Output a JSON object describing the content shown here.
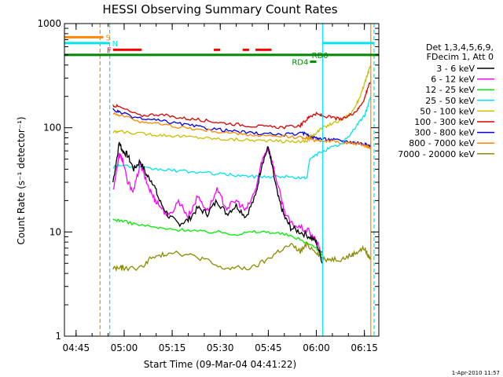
{
  "chart_data": {
    "type": "line",
    "title": "HESSI Observing Summary Count Rates",
    "xlabel": "Start Time (09-Mar-04 04:41:22)",
    "ylabel": "Count Rate (s⁻¹ detector⁻¹)",
    "y_scale": "log",
    "ylim": [
      1,
      1000
    ],
    "xlim": [
      "04:41:22",
      "06:19:30"
    ],
    "x_ticks": [
      "04:45",
      "05:00",
      "05:15",
      "05:30",
      "05:45",
      "06:00",
      "06:15"
    ],
    "y_ticks": [
      "1",
      "10",
      "100",
      "1000"
    ],
    "grid": false,
    "legend_position": "right",
    "legend_header": [
      "Det 1,3,4,5,6,9,",
      "FDecim 1, Att 0"
    ],
    "timestamp": "1-Apr-2010 11:57",
    "series": [
      {
        "name": "3 - 6 keV",
        "color": "#000000",
        "x": [
          "04:56:30",
          "04:58:30",
          "04:59:30",
          "05:01",
          "05:03",
          "05:05",
          "05:07",
          "05:09",
          "05:11",
          "05:14",
          "05:17",
          "05:20",
          "05:23",
          "05:26",
          "05:29",
          "05:32",
          "05:35",
          "05:38",
          "05:41",
          "05:43",
          "05:45",
          "05:46",
          "05:48",
          "05:50",
          "05:52",
          "05:55",
          "05:58",
          "06:00",
          "06:02"
        ],
        "y": [
          30,
          72,
          60,
          55,
          40,
          48,
          35,
          30,
          20,
          14,
          12,
          13,
          17,
          15,
          20,
          15,
          18,
          14,
          22,
          45,
          65,
          45,
          22,
          14,
          11,
          10,
          9,
          8,
          5
        ]
      },
      {
        "name": "6 - 12 keV",
        "color": "#ff00ff",
        "x": [
          "04:56:30",
          "04:58:30",
          "04:59:30",
          "05:01",
          "05:03",
          "05:05",
          "05:07",
          "05:09",
          "05:11",
          "05:14",
          "05:17",
          "05:20",
          "05:23",
          "05:26",
          "05:29",
          "05:32",
          "05:35",
          "05:38",
          "05:41",
          "05:43",
          "05:45",
          "05:46",
          "05:48",
          "05:50",
          "05:52",
          "05:55",
          "05:58",
          "06:00",
          "06:02"
        ],
        "y": [
          25,
          55,
          50,
          30,
          25,
          45,
          30,
          22,
          18,
          14,
          20,
          14,
          22,
          16,
          25,
          17,
          20,
          16,
          25,
          48,
          65,
          50,
          28,
          16,
          12,
          11,
          10,
          8,
          6
        ]
      },
      {
        "name": "12 - 25 keV",
        "color": "#00ee00",
        "x": [
          "04:56:30",
          "04:58:30",
          "05:03",
          "05:10",
          "05:15",
          "05:20",
          "05:25",
          "05:30",
          "05:35",
          "05:40",
          "05:45",
          "05:50",
          "05:55",
          "06:00",
          "06:02"
        ],
        "y": [
          13,
          13,
          12,
          11,
          10.5,
          10.5,
          10,
          10,
          9.5,
          10,
          10,
          9.5,
          8.5,
          7,
          6
        ]
      },
      {
        "name": "25 - 50 keV",
        "color": "#00e5ee",
        "x": [
          "04:56:30",
          "04:58:30",
          "05:05",
          "05:10",
          "05:15",
          "05:20",
          "05:25",
          "05:30",
          "05:35",
          "05:40",
          "05:45",
          "05:50",
          "05:55",
          "05:57",
          "05:58",
          "06:00",
          "06:02",
          "06:05",
          "06:08",
          "06:11",
          "06:13",
          "06:15",
          "06:16",
          "06:17"
        ],
        "y": [
          42,
          44,
          41,
          40,
          39,
          38,
          37,
          36,
          35,
          34,
          34,
          34,
          33,
          33,
          50,
          55,
          60,
          65,
          70,
          90,
          110,
          130,
          160,
          200
        ]
      },
      {
        "name": "50 - 100 keV",
        "color": "#cdbe00",
        "x": [
          "04:56:30",
          "04:58:30",
          "05:05",
          "05:10",
          "05:15",
          "05:20",
          "05:25",
          "05:30",
          "05:35",
          "05:40",
          "05:45",
          "05:50",
          "05:55",
          "05:57",
          "05:58",
          "06:00",
          "06:02",
          "06:05",
          "06:08",
          "06:11",
          "06:13",
          "06:15",
          "06:16",
          "06:17"
        ],
        "y": [
          90,
          92,
          88,
          86,
          84,
          82,
          80,
          78,
          77,
          76,
          75,
          74,
          74,
          74,
          82,
          90,
          100,
          110,
          120,
          140,
          180,
          260,
          330,
          400
        ]
      },
      {
        "name": "100 - 300 keV",
        "color": "#dd0000",
        "x": [
          "04:56:30",
          "04:58:30",
          "05:05",
          "05:10",
          "05:15",
          "05:20",
          "05:25",
          "05:30",
          "05:35",
          "05:40",
          "05:45",
          "05:50",
          "05:55",
          "05:57",
          "05:58",
          "06:00",
          "06:02",
          "06:05",
          "06:08",
          "06:11",
          "06:13",
          "06:15",
          "06:16",
          "06:17"
        ],
        "y": [
          165,
          158,
          130,
          135,
          128,
          122,
          118,
          112,
          108,
          104,
          102,
          101,
          105,
          120,
          130,
          135,
          130,
          125,
          120,
          135,
          150,
          190,
          240,
          280
        ]
      },
      {
        "name": "300 - 800 keV",
        "color": "#0000ee",
        "x": [
          "04:56:30",
          "04:58:30",
          "05:05",
          "05:10",
          "05:15",
          "05:20",
          "05:25",
          "05:30",
          "05:35",
          "05:40",
          "05:45",
          "05:50",
          "05:55",
          "05:57",
          "05:58",
          "06:00",
          "06:02",
          "06:05",
          "06:08",
          "06:11",
          "06:13",
          "06:15",
          "06:16",
          "06:17"
        ],
        "y": [
          150,
          140,
          122,
          118,
          112,
          106,
          100,
          96,
          92,
          89,
          87,
          86,
          88,
          88,
          82,
          80,
          78,
          77,
          75,
          73,
          72,
          70,
          68,
          66
        ]
      },
      {
        "name": "800 - 7000 keV",
        "color": "#ff8800",
        "x": [
          "04:56:30",
          "04:58:30",
          "05:05",
          "05:10",
          "05:15",
          "05:20",
          "05:25",
          "05:30",
          "05:35",
          "05:40",
          "05:45",
          "05:50",
          "05:55",
          "05:57",
          "05:58",
          "06:00",
          "06:02",
          "06:05",
          "06:08",
          "06:11",
          "06:13",
          "06:15",
          "06:16",
          "06:17"
        ],
        "y": [
          140,
          132,
          115,
          110,
          104,
          99,
          95,
          91,
          88,
          85,
          83,
          82,
          81,
          80,
          78,
          76,
          75,
          74,
          72,
          71,
          70,
          68,
          66,
          64
        ]
      },
      {
        "name": "7000 - 20000 keV",
        "color": "#8b8b00",
        "x": [
          "04:56:30",
          "04:58:30",
          "05:00",
          "05:05",
          "05:08",
          "05:12",
          "05:15",
          "05:20",
          "05:25",
          "05:30",
          "05:35",
          "05:40",
          "05:45",
          "05:48",
          "05:52",
          "05:55",
          "05:57",
          "06:00",
          "06:02",
          "06:05",
          "06:08",
          "06:11",
          "06:13",
          "06:15",
          "06:16",
          "06:17"
        ],
        "y": [
          4.5,
          4.5,
          4.5,
          4.5,
          5.5,
          6,
          6.5,
          6,
          5.5,
          4.5,
          4.5,
          4.5,
          5.5,
          6.5,
          7.5,
          6.5,
          7.5,
          6.5,
          5.5,
          5.5,
          5.5,
          6,
          6.5,
          7,
          6,
          5.5
        ]
      }
    ],
    "annotations": {
      "flags": [
        {
          "label": "S",
          "color": "#ff8800",
          "y": 740,
          "x_end": "04:53:30"
        },
        {
          "label": "N",
          "color": "#00e5ee",
          "y": 650,
          "x_end": "04:55:30"
        },
        {
          "label": "F",
          "color": "#ff0000",
          "y": 560,
          "segments": [
            [
              "04:56:30",
              "05:05:30"
            ],
            [
              "05:28",
              "05:30"
            ],
            [
              "05:37",
              "05:39"
            ],
            [
              "05:41",
              "05:46"
            ]
          ]
        },
        {
          "label": "RD0",
          "color": "#008800",
          "y": 500,
          "x_end": "06:19:30"
        },
        {
          "label": "RD4",
          "color": "#008800",
          "y": 430,
          "segments": [
            [
              "05:58",
              "06:00"
            ]
          ]
        }
      ],
      "right_flag_segment": {
        "color": "#00e5ee",
        "y": 650,
        "x_range": [
          "06:02",
          "06:18"
        ]
      },
      "vertical_lines": [
        {
          "x": "04:52:30",
          "color": "#ff8800",
          "style": "dashed"
        },
        {
          "x": "04:55:30",
          "color": "#00e5ee",
          "style": "dashed"
        },
        {
          "x": "06:02",
          "color": "#00e5ee",
          "style": "solid"
        },
        {
          "x": "06:18",
          "color": "#00e5ee",
          "style": "dashed"
        },
        {
          "x": "06:17",
          "color": "#ff8800",
          "style": "solid"
        }
      ]
    }
  }
}
